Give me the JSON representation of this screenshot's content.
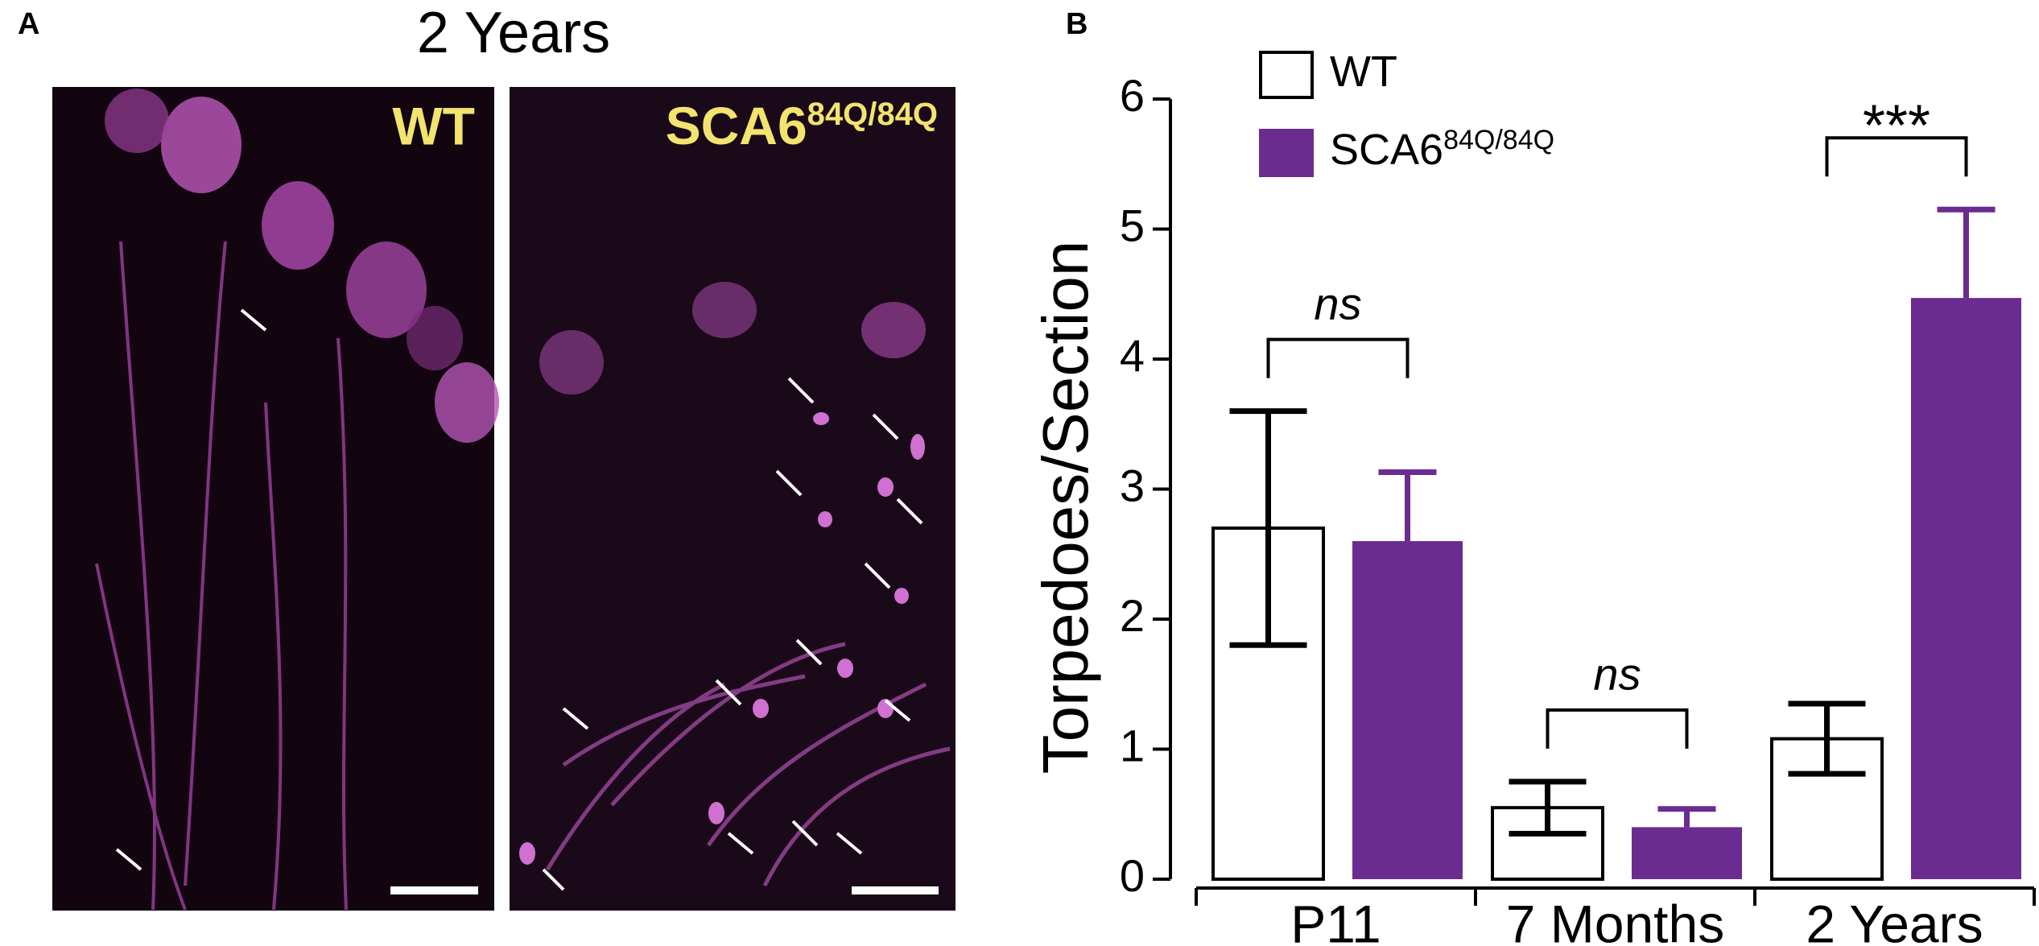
{
  "panel_labels": [
    "A",
    "B"
  ],
  "image_panel": {
    "title": "2 Years",
    "left_label": "WT",
    "right_label": "SCA6",
    "right_label_sup": "84Q/84Q"
  },
  "chart_data": {
    "type": "bar",
    "categories": [
      "P11",
      "7 Months",
      "2 Years"
    ],
    "series": [
      {
        "name": "WT",
        "color": "#ffffff",
        "values": [
          2.7,
          0.55,
          1.08
        ],
        "errors": [
          0.9,
          0.2,
          0.27
        ]
      },
      {
        "name": "SCA6",
        "name_sup": "84Q/84Q",
        "color": "#6a2c91",
        "values": [
          2.6,
          0.4,
          4.47
        ],
        "errors": [
          0.53,
          0.14,
          0.68
        ]
      }
    ],
    "significance": [
      "ns",
      "ns",
      "***"
    ],
    "ylabel": "Torpedoes/Section",
    "ylim": [
      0,
      6
    ],
    "yticks": [
      0,
      1,
      2,
      3,
      4,
      5,
      6
    ]
  }
}
